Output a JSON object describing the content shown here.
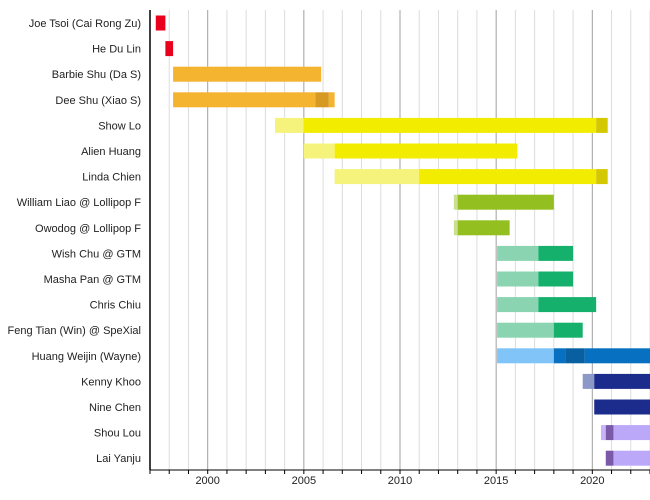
{
  "chart_data": {
    "type": "bar",
    "orientation": "horizontal-timeline",
    "xlim": [
      1997,
      2023
    ],
    "x_ticks": [
      "2000",
      "2005",
      "2010",
      "2015",
      "2020"
    ],
    "grid": {
      "minor_every_year": true,
      "major_every_5_years": true
    },
    "rows": [
      {
        "label": "Joe Tsoi (Cai Rong Zu)",
        "segments": [
          {
            "from": 1997.3,
            "to": 1997.8,
            "color": "#e8001c"
          }
        ]
      },
      {
        "label": "He Du Lin",
        "segments": [
          {
            "from": 1997.8,
            "to": 1998.2,
            "color": "#e8001c"
          }
        ]
      },
      {
        "label": "Barbie Shu (Da S)",
        "segments": [
          {
            "from": 1998.2,
            "to": 2005.9,
            "color": "#f5b430"
          }
        ]
      },
      {
        "label": "Dee Shu (Xiao S)",
        "segments": [
          {
            "from": 1998.2,
            "to": 2005.6,
            "color": "#f5b430"
          },
          {
            "from": 2005.6,
            "to": 2006.3,
            "color": "#d69a22"
          },
          {
            "from": 2006.3,
            "to": 2006.6,
            "color": "#f5b430"
          }
        ]
      },
      {
        "label": "Show Lo",
        "segments": [
          {
            "from": 2003.5,
            "to": 2005.0,
            "color": "#f6f37c"
          },
          {
            "from": 2005.0,
            "to": 2020.2,
            "color": "#f2ec00"
          },
          {
            "from": 2020.2,
            "to": 2020.8,
            "color": "#d4c800"
          }
        ]
      },
      {
        "label": "Alien Huang",
        "segments": [
          {
            "from": 2005.0,
            "to": 2006.6,
            "color": "#f6f37c"
          },
          {
            "from": 2006.6,
            "to": 2016.1,
            "color": "#f2ec00"
          }
        ]
      },
      {
        "label": "Linda Chien",
        "segments": [
          {
            "from": 2006.6,
            "to": 2011.0,
            "color": "#f6f37c"
          },
          {
            "from": 2011.0,
            "to": 2020.2,
            "color": "#f2ec00"
          },
          {
            "from": 2020.2,
            "to": 2020.8,
            "color": "#d4c800"
          }
        ]
      },
      {
        "label": "William Liao @ Lollipop F",
        "segments": [
          {
            "from": 2012.8,
            "to": 2013.0,
            "color": "#c8e090"
          },
          {
            "from": 2013.0,
            "to": 2018.0,
            "color": "#93c020"
          }
        ]
      },
      {
        "label": "Owodog @ Lollipop F",
        "segments": [
          {
            "from": 2012.8,
            "to": 2013.0,
            "color": "#c8e090"
          },
          {
            "from": 2013.0,
            "to": 2015.7,
            "color": "#93c020"
          }
        ]
      },
      {
        "label": "Wish Chu @ GTM",
        "segments": [
          {
            "from": 2015.05,
            "to": 2017.2,
            "color": "#8ad4b2"
          },
          {
            "from": 2017.2,
            "to": 2019.0,
            "color": "#14b06c"
          }
        ]
      },
      {
        "label": "Masha Pan @ GTM",
        "segments": [
          {
            "from": 2015.05,
            "to": 2017.2,
            "color": "#8ad4b2"
          },
          {
            "from": 2017.2,
            "to": 2019.0,
            "color": "#14b06c"
          }
        ]
      },
      {
        "label": "Chris Chiu",
        "segments": [
          {
            "from": 2015.05,
            "to": 2017.2,
            "color": "#8ad4b2"
          },
          {
            "from": 2017.2,
            "to": 2020.2,
            "color": "#14b06c"
          }
        ]
      },
      {
        "label": "Feng Tian (Win) @ SpeXial",
        "segments": [
          {
            "from": 2015.05,
            "to": 2018.0,
            "color": "#8ad4b2"
          },
          {
            "from": 2018.0,
            "to": 2019.5,
            "color": "#14b06c"
          }
        ]
      },
      {
        "label": "Huang Weijin (Wayne)",
        "segments": [
          {
            "from": 2015.05,
            "to": 2018.0,
            "color": "#80c4f8"
          },
          {
            "from": 2018.0,
            "to": 2018.6,
            "color": "#0870c0"
          },
          {
            "from": 2018.6,
            "to": 2019.6,
            "color": "#0860a0"
          },
          {
            "from": 2019.6,
            "to": 2023.0,
            "color": "#0870c0"
          }
        ]
      },
      {
        "label": "Kenny Khoo",
        "segments": [
          {
            "from": 2019.5,
            "to": 2020.1,
            "color": "#8c98c8"
          },
          {
            "from": 2020.1,
            "to": 2023.0,
            "color": "#1c2c8c"
          }
        ]
      },
      {
        "label": "Nine Chen",
        "segments": [
          {
            "from": 2020.1,
            "to": 2023.0,
            "color": "#1c2c8c"
          }
        ]
      },
      {
        "label": "Shou Lou",
        "segments": [
          {
            "from": 2020.45,
            "to": 2020.7,
            "color": "#c8b4f8"
          },
          {
            "from": 2020.7,
            "to": 2021.1,
            "color": "#7a5aa8"
          },
          {
            "from": 2021.1,
            "to": 2023.0,
            "color": "#bca8f8"
          }
        ]
      },
      {
        "label": "Lai Yanju",
        "segments": [
          {
            "from": 2020.7,
            "to": 2021.1,
            "color": "#7a5aa8"
          },
          {
            "from": 2021.1,
            "to": 2023.0,
            "color": "#bca8f8"
          }
        ]
      }
    ]
  }
}
